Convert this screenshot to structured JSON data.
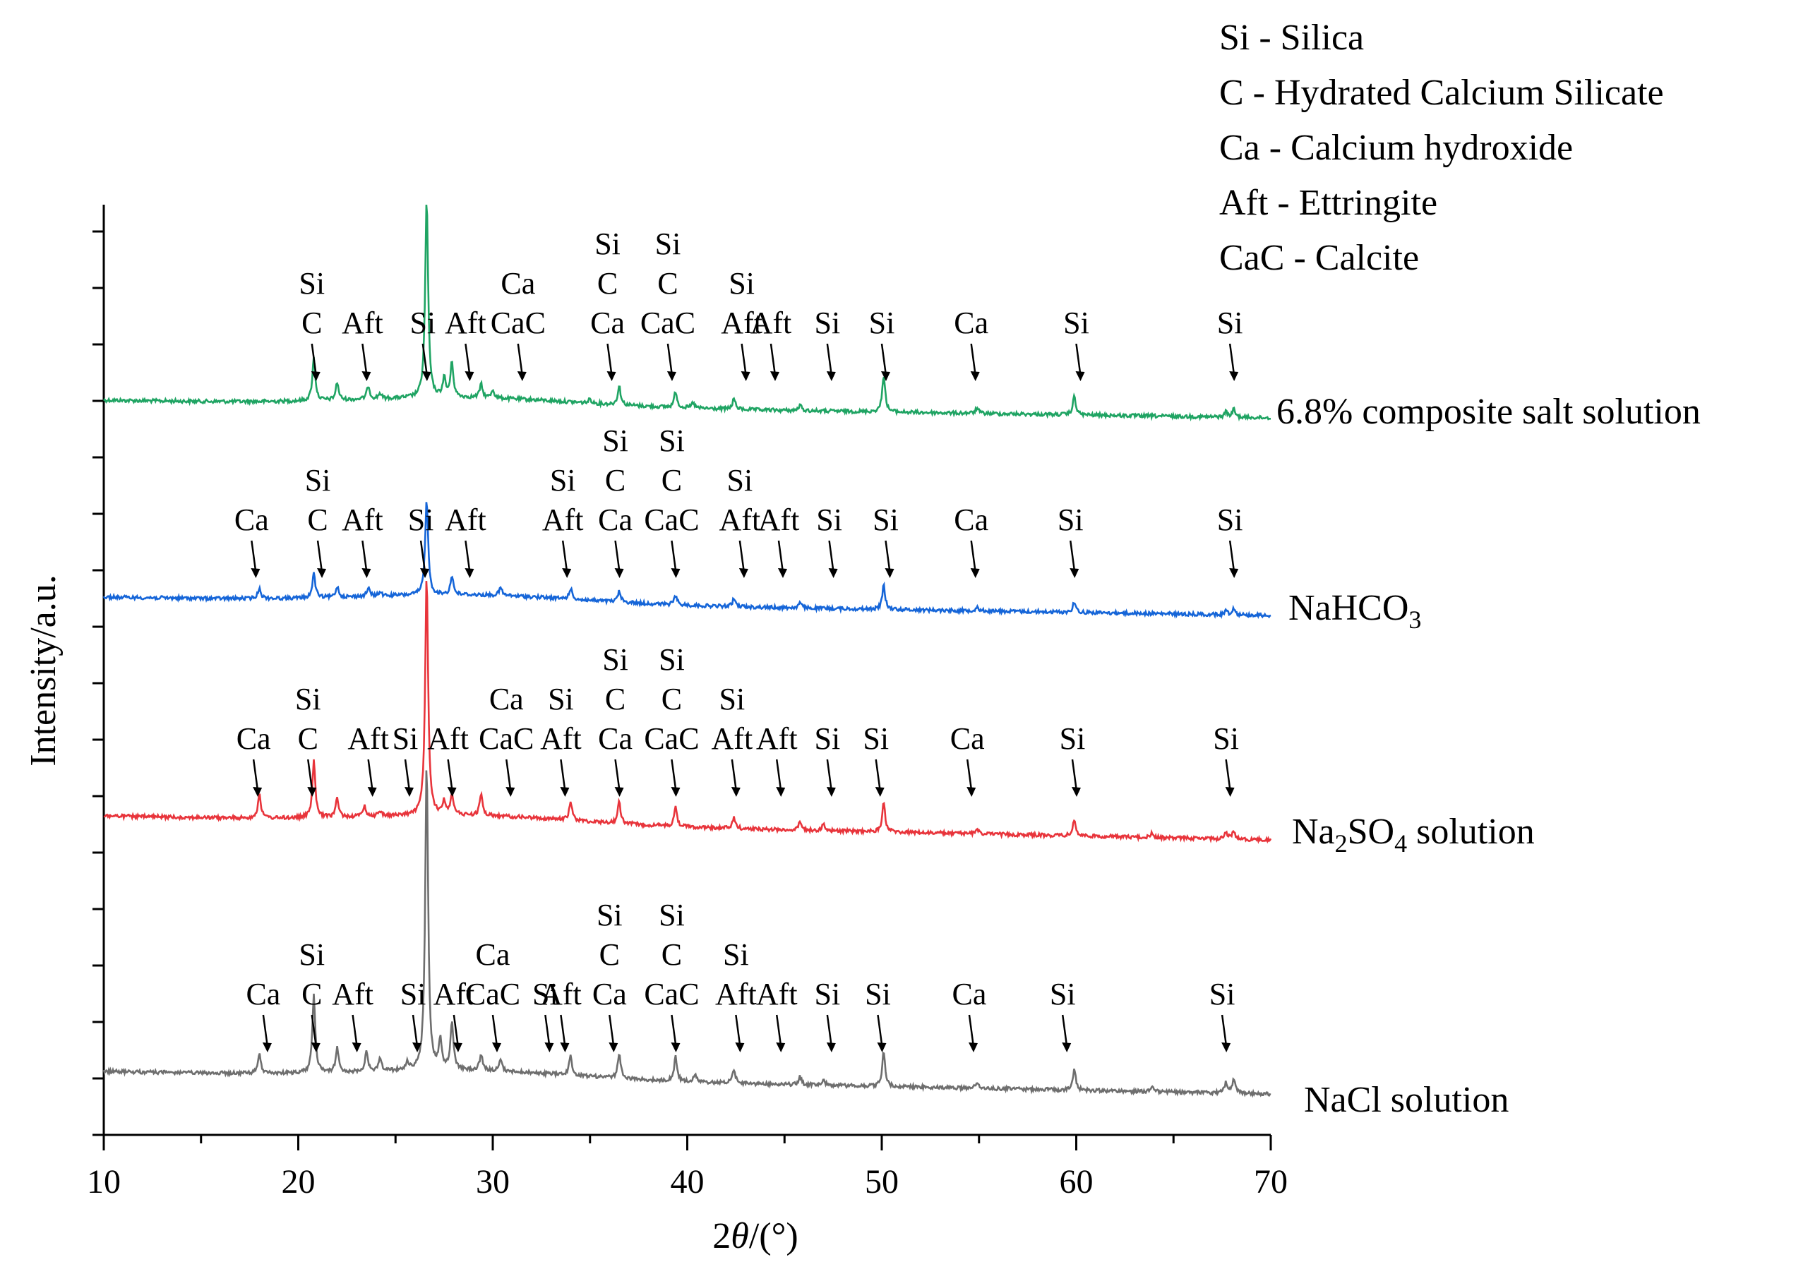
{
  "chart_data": {
    "type": "line",
    "title": "",
    "xlabel_prefix": "2",
    "xlabel_theta": "θ",
    "xlabel_suffix": "/(°)",
    "ylabel": "Intensity/a.u.",
    "xlim": [
      10,
      70
    ],
    "x_ticks": [
      "10",
      "20",
      "30",
      "40",
      "50",
      "60",
      "70"
    ],
    "legend": [
      "Si -  Silica",
      "C - Hydrated Calcium Silicate",
      "Ca - Calcium hydroxide",
      "Aft -  Ettringite",
      "CaC - Calcite"
    ],
    "series": [
      {
        "name": "6.8% composite salt solution",
        "label_parts": [
          "6.8% composite salt solution"
        ],
        "color": "#1fa463",
        "peaks": [
          [
            20.8,
            32
          ],
          [
            22.0,
            13
          ],
          [
            23.6,
            10
          ],
          [
            24.2,
            4
          ],
          [
            26.6,
            148
          ],
          [
            27.5,
            14
          ],
          [
            27.9,
            26
          ],
          [
            29.4,
            10
          ],
          [
            30.0,
            6
          ],
          [
            35.0,
            3
          ],
          [
            36.5,
            14
          ],
          [
            39.4,
            12
          ],
          [
            40.3,
            4
          ],
          [
            42.4,
            8
          ],
          [
            45.8,
            4
          ],
          [
            50.1,
            28
          ],
          [
            54.9,
            4
          ],
          [
            59.9,
            14
          ],
          [
            67.7,
            4
          ],
          [
            68.1,
            6
          ]
        ],
        "labels": [
          {
            "x": 20.7,
            "lines": [
              "Si",
              "C"
            ]
          },
          {
            "x": 23.3,
            "lines": [
              "Aft"
            ]
          },
          {
            "x": 26.4,
            "lines": [
              "Si"
            ]
          },
          {
            "x": 28.6,
            "lines": [
              "Aft"
            ]
          },
          {
            "x": 31.3,
            "lines": [
              "Ca",
              "CaC"
            ]
          },
          {
            "x": 35.9,
            "lines": [
              "Si",
              "C",
              "Ca"
            ]
          },
          {
            "x": 39.0,
            "lines": [
              "Si",
              "C",
              "CaC"
            ]
          },
          {
            "x": 42.8,
            "lines": [
              "Si",
              "Aft"
            ]
          },
          {
            "x": 44.3,
            "lines": [
              "Aft"
            ]
          },
          {
            "x": 47.2,
            "lines": [
              "Si"
            ]
          },
          {
            "x": 50.0,
            "lines": [
              "Si"
            ]
          },
          {
            "x": 54.6,
            "lines": [
              "Ca"
            ]
          },
          {
            "x": 60.0,
            "lines": [
              "Si"
            ]
          },
          {
            "x": 67.9,
            "lines": [
              "Si"
            ]
          }
        ]
      },
      {
        "name": "NaHCO3",
        "label_parts": [
          "NaHCO",
          "3",
          ""
        ],
        "color": "#1565d8",
        "peaks": [
          [
            18.0,
            8
          ],
          [
            20.8,
            18
          ],
          [
            22.0,
            8
          ],
          [
            23.6,
            6
          ],
          [
            24.2,
            3
          ],
          [
            26.6,
            72
          ],
          [
            27.9,
            14
          ],
          [
            30.4,
            6
          ],
          [
            34.0,
            8
          ],
          [
            36.5,
            8
          ],
          [
            39.4,
            7
          ],
          [
            42.4,
            6
          ],
          [
            45.8,
            4
          ],
          [
            50.1,
            18
          ],
          [
            54.9,
            3
          ],
          [
            59.9,
            8
          ],
          [
            67.7,
            3
          ],
          [
            68.1,
            5
          ]
        ],
        "labels": [
          {
            "x": 17.6,
            "lines": [
              "Ca"
            ]
          },
          {
            "x": 21.0,
            "lines": [
              "Si",
              "C"
            ]
          },
          {
            "x": 23.3,
            "lines": [
              "Aft"
            ]
          },
          {
            "x": 26.3,
            "lines": [
              "Si"
            ]
          },
          {
            "x": 28.6,
            "lines": [
              "Aft"
            ]
          },
          {
            "x": 33.6,
            "lines": [
              "Si",
              "Aft"
            ]
          },
          {
            "x": 36.3,
            "lines": [
              "Si",
              "C",
              "Ca"
            ]
          },
          {
            "x": 39.2,
            "lines": [
              "Si",
              "C",
              "CaC"
            ]
          },
          {
            "x": 42.7,
            "lines": [
              "Si",
              "Aft"
            ]
          },
          {
            "x": 44.7,
            "lines": [
              "Aft"
            ]
          },
          {
            "x": 47.3,
            "lines": [
              "Si"
            ]
          },
          {
            "x": 50.2,
            "lines": [
              "Si"
            ]
          },
          {
            "x": 54.6,
            "lines": [
              "Ca"
            ]
          },
          {
            "x": 59.7,
            "lines": [
              "Si"
            ]
          },
          {
            "x": 67.9,
            "lines": [
              "Si"
            ]
          }
        ]
      },
      {
        "name": "Na2SO4 solution",
        "label_parts": [
          "Na",
          "2",
          "SO",
          "4",
          " solution"
        ],
        "color": "#e8343b",
        "peaks": [
          [
            18.0,
            18
          ],
          [
            20.8,
            42
          ],
          [
            22.0,
            14
          ],
          [
            23.4,
            8
          ],
          [
            24.2,
            4
          ],
          [
            26.6,
            178
          ],
          [
            27.5,
            10
          ],
          [
            27.9,
            16
          ],
          [
            29.4,
            16
          ],
          [
            34.0,
            14
          ],
          [
            36.5,
            16
          ],
          [
            39.4,
            14
          ],
          [
            42.4,
            8
          ],
          [
            45.8,
            6
          ],
          [
            47.0,
            5
          ],
          [
            50.1,
            22
          ],
          [
            54.9,
            4
          ],
          [
            59.9,
            12
          ],
          [
            63.9,
            3
          ],
          [
            67.7,
            5
          ],
          [
            68.1,
            6
          ]
        ],
        "labels": [
          {
            "x": 17.7,
            "lines": [
              "Ca"
            ]
          },
          {
            "x": 20.5,
            "lines": [
              "Si",
              "C"
            ]
          },
          {
            "x": 23.6,
            "lines": [
              "Aft"
            ]
          },
          {
            "x": 25.5,
            "lines": [
              "Si"
            ]
          },
          {
            "x": 27.7,
            "lines": [
              "Aft"
            ]
          },
          {
            "x": 30.7,
            "lines": [
              "Ca",
              "CaC"
            ]
          },
          {
            "x": 33.5,
            "lines": [
              "Si",
              "Aft"
            ]
          },
          {
            "x": 36.3,
            "lines": [
              "Si",
              "C",
              "Ca"
            ]
          },
          {
            "x": 39.2,
            "lines": [
              "Si",
              "C",
              "CaC"
            ]
          },
          {
            "x": 42.3,
            "lines": [
              "Si",
              "Aft"
            ]
          },
          {
            "x": 44.6,
            "lines": [
              "Aft"
            ]
          },
          {
            "x": 47.2,
            "lines": [
              "Si"
            ]
          },
          {
            "x": 49.7,
            "lines": [
              "Si"
            ]
          },
          {
            "x": 54.4,
            "lines": [
              "Ca"
            ]
          },
          {
            "x": 59.8,
            "lines": [
              "Si"
            ]
          },
          {
            "x": 67.7,
            "lines": [
              "Si"
            ]
          }
        ]
      },
      {
        "name": "NaCl solution",
        "label_parts": [
          "NaCl solution"
        ],
        "color": "#6e6e6e",
        "peaks": [
          [
            18.0,
            14
          ],
          [
            20.8,
            58
          ],
          [
            22.0,
            18
          ],
          [
            23.5,
            14
          ],
          [
            24.2,
            10
          ],
          [
            25.6,
            6
          ],
          [
            26.6,
            228
          ],
          [
            27.3,
            22
          ],
          [
            27.9,
            36
          ],
          [
            29.4,
            12
          ],
          [
            30.4,
            8
          ],
          [
            34.0,
            14
          ],
          [
            36.5,
            18
          ],
          [
            39.4,
            18
          ],
          [
            40.4,
            5
          ],
          [
            42.4,
            10
          ],
          [
            45.8,
            6
          ],
          [
            47.0,
            4
          ],
          [
            50.1,
            26
          ],
          [
            54.9,
            5
          ],
          [
            59.9,
            16
          ],
          [
            63.9,
            4
          ],
          [
            67.7,
            8
          ],
          [
            68.1,
            10
          ]
        ],
        "labels": [
          {
            "x": 18.2,
            "lines": [
              "Ca"
            ]
          },
          {
            "x": 20.7,
            "lines": [
              "Si",
              "C"
            ]
          },
          {
            "x": 22.8,
            "lines": [
              "Aft"
            ]
          },
          {
            "x": 25.9,
            "lines": [
              "Si"
            ]
          },
          {
            "x": 28.0,
            "lines": [
              "Aft"
            ]
          },
          {
            "x": 30.0,
            "lines": [
              "Ca",
              "CaC"
            ]
          },
          {
            "x": 32.7,
            "lines": [
              "Si"
            ]
          },
          {
            "x": 33.5,
            "lines": [
              "Aft"
            ]
          },
          {
            "x": 36.0,
            "lines": [
              "Si",
              "C",
              "Ca"
            ]
          },
          {
            "x": 39.2,
            "lines": [
              "Si",
              "C",
              "CaC"
            ]
          },
          {
            "x": 42.5,
            "lines": [
              "Si",
              "Aft"
            ]
          },
          {
            "x": 44.6,
            "lines": [
              "Aft"
            ]
          },
          {
            "x": 47.2,
            "lines": [
              "Si"
            ]
          },
          {
            "x": 49.8,
            "lines": [
              "Si"
            ]
          },
          {
            "x": 54.5,
            "lines": [
              "Ca"
            ]
          },
          {
            "x": 59.3,
            "lines": [
              "Si"
            ]
          },
          {
            "x": 67.5,
            "lines": [
              "Si"
            ]
          }
        ]
      }
    ]
  }
}
